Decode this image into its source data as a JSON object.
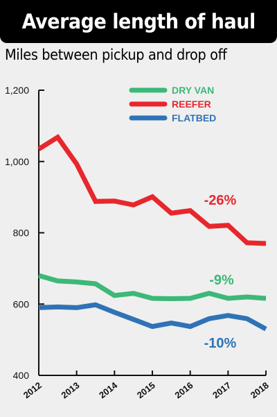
{
  "title": "Average length of haul",
  "subtitle": "Miles between pickup and drop off",
  "colors": {
    "dry_van": "#3cb878",
    "reefer": "#e8272d",
    "flatbed": "#2f73b6"
  },
  "chart_data": {
    "type": "line",
    "title": "Average length of haul",
    "subtitle": "Miles between pickup and drop off",
    "xlabel": "",
    "ylabel": "",
    "ylim": [
      400,
      1200
    ],
    "yticks": [
      "1,200",
      "1,000",
      "800",
      "600",
      "400"
    ],
    "ytick_values": [
      1200,
      1000,
      800,
      600,
      400
    ],
    "xlim": [
      2012,
      2018
    ],
    "xticks": [
      "2012",
      "2013",
      "2014",
      "2015",
      "2016",
      "2017",
      "2018"
    ],
    "xtick_values": [
      2012,
      2013,
      2014,
      2015,
      2016,
      2017,
      2018
    ],
    "grid": false,
    "legend_position": "top-right",
    "x": [
      2012.0,
      2012.5,
      2013.0,
      2013.5,
      2014.0,
      2014.5,
      2015.0,
      2015.5,
      2016.0,
      2016.5,
      2017.0,
      2017.5,
      2018.0
    ],
    "series": [
      {
        "name": "DRY VAN",
        "color": "#3cb878",
        "values": [
          680,
          665,
          662,
          657,
          624,
          630,
          616,
          615,
          616,
          630,
          616,
          620,
          616
        ],
        "change_label": "-9%"
      },
      {
        "name": "REEFER",
        "color": "#e8272d",
        "values": [
          1035,
          1068,
          993,
          888,
          889,
          878,
          901,
          855,
          862,
          818,
          821,
          772,
          770
        ],
        "change_label": "-26%"
      },
      {
        "name": "FLATBED",
        "color": "#2f73b6",
        "values": [
          590,
          592,
          590,
          598,
          577,
          557,
          537,
          547,
          537,
          559,
          568,
          559,
          530
        ],
        "change_label": "-10%"
      }
    ]
  }
}
